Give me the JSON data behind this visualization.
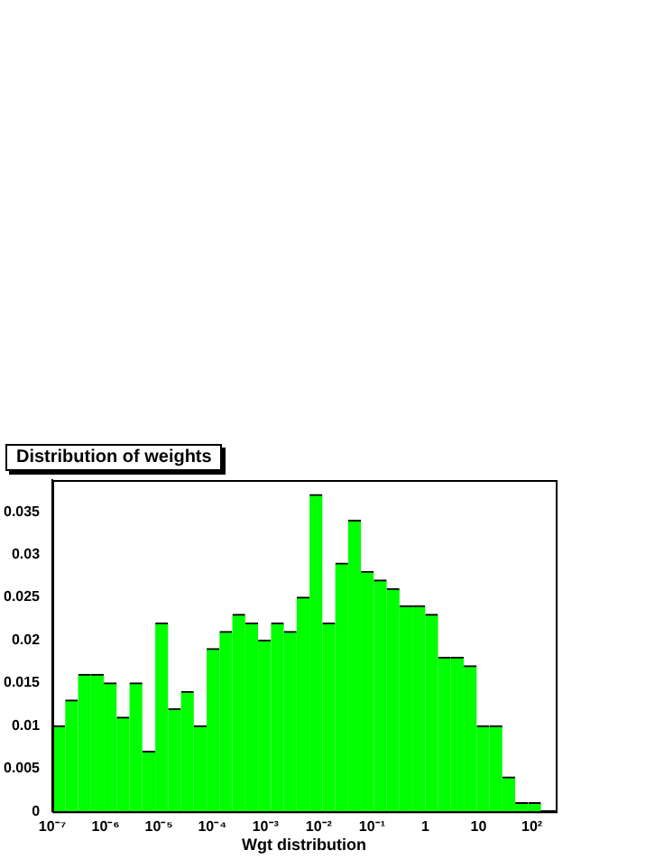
{
  "chart_data": {
    "type": "histogram",
    "title": "Distribution of weights",
    "xlabel": "Wgt distribution",
    "bins": [
      1e-07,
      1.74e-07,
      3.04e-07,
      5.3e-07,
      9.23e-07,
      1.61e-06,
      2.8e-06,
      4.89e-06,
      8.52e-06,
      1.49e-05,
      2.59e-05,
      4.51e-05,
      7.86e-05,
      0.000137,
      0.000239,
      0.000416,
      0.000726,
      0.00127,
      0.00221,
      0.00384,
      0.0067,
      0.0117,
      0.0204,
      0.0355,
      0.0618,
      0.108,
      0.188,
      0.327,
      0.571,
      0.995,
      1.73,
      3.02,
      5.27,
      9.18,
      16,
      27.9,
      48.6,
      84.8,
      148
    ],
    "values": [
      0.01,
      0.013,
      0.016,
      0.016,
      0.015,
      0.011,
      0.015,
      0.007,
      0.022,
      0.012,
      0.014,
      0.01,
      0.019,
      0.021,
      0.023,
      0.022,
      0.02,
      0.022,
      0.021,
      0.025,
      0.037,
      0.022,
      0.029,
      0.034,
      0.028,
      0.027,
      0.026,
      0.024,
      0.024,
      0.023,
      0.018,
      0.018,
      0.017,
      0.01,
      0.01,
      0.004,
      0.001,
      0.001
    ],
    "color": "#00ff00",
    "log": "x",
    "grid": false,
    "legend": false,
    "xlim": [
      1e-07,
      280
    ],
    "xticks": [
      {
        "value": 1e-07,
        "label": "10⁻⁷"
      },
      {
        "value": 1e-06,
        "label": "10⁻⁶"
      },
      {
        "value": 1e-05,
        "label": "10⁻⁵"
      },
      {
        "value": 0.0001,
        "label": "10⁻⁴"
      },
      {
        "value": 0.001,
        "label": "10⁻³"
      },
      {
        "value": 0.01,
        "label": "10⁻²"
      },
      {
        "value": 0.1,
        "label": "10⁻¹"
      },
      1,
      10,
      {
        "value": 100,
        "label": "10²"
      }
    ],
    "ylim": [
      0,
      0.0387
    ],
    "yticks": [
      0,
      0.005,
      0.01,
      0.015,
      0.02,
      0.025,
      0.03,
      0.035
    ]
  }
}
